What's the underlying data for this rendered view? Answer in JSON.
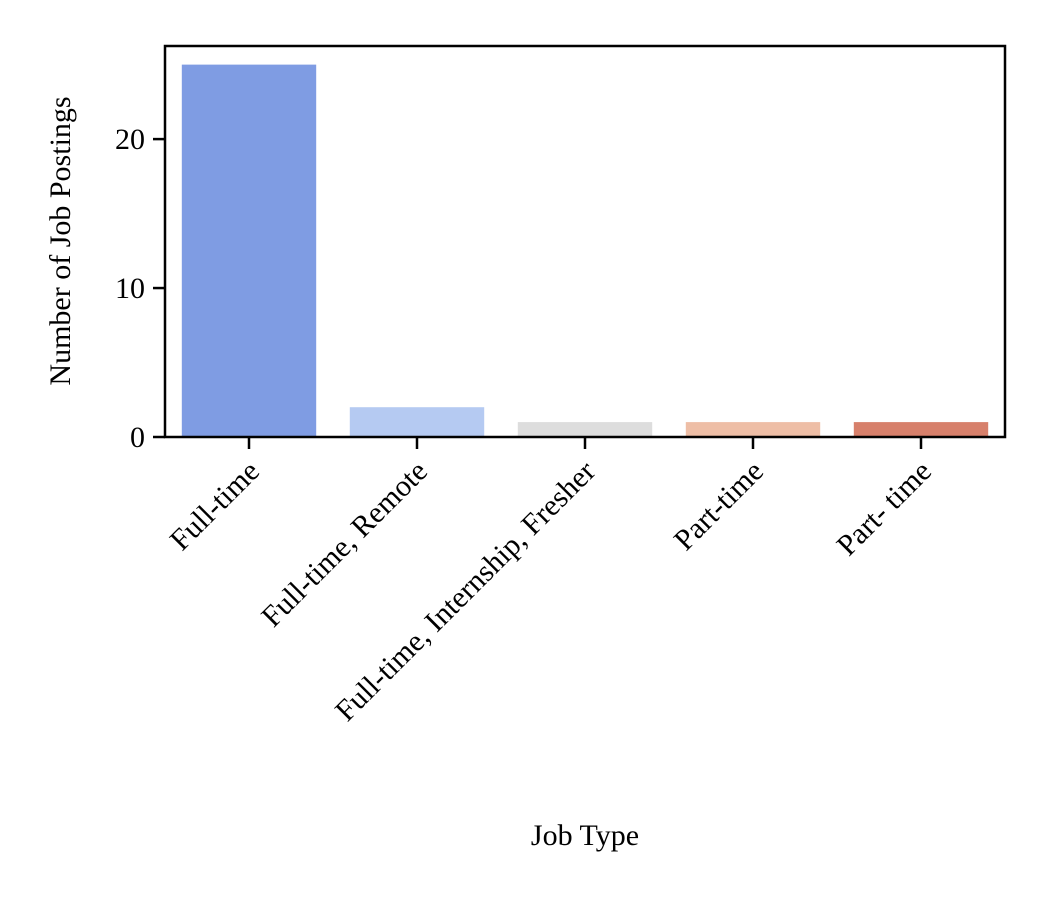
{
  "chart_data": {
    "type": "bar",
    "categories": [
      "Full-time",
      "Full-time, Remote",
      "Full-time, Internship, Fresher",
      "Part-time",
      "Part- time"
    ],
    "values": [
      25,
      2,
      1,
      1,
      1
    ],
    "colors": [
      "#7f9ce3",
      "#b5caf2",
      "#dddddd",
      "#eebea6",
      "#d7806b"
    ],
    "title": "",
    "xlabel": "Job Type",
    "ylabel": "Number of Job Postings",
    "ylim": [
      0,
      26.25
    ],
    "yticks": [
      0,
      10,
      20
    ],
    "grid": false,
    "legend": false
  }
}
